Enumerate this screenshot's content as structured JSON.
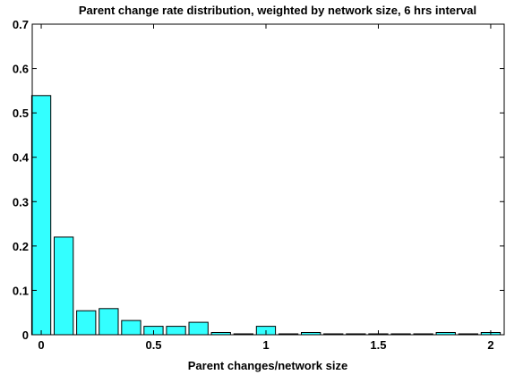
{
  "chart_data": {
    "type": "bar",
    "title": "Parent change rate distribution, weighted by network size, 6 hrs interval",
    "xlabel": "Parent changes/network size",
    "ylabel": "",
    "xlim": [
      -0.04,
      2.06
    ],
    "ylim": [
      0,
      0.7
    ],
    "bar_width": 0.085,
    "xticks": [
      0,
      0.5,
      1,
      1.5,
      2
    ],
    "xtick_labels": [
      "0",
      "0.5",
      "1",
      "1.5",
      "2"
    ],
    "yticks": [
      0,
      0.1,
      0.2,
      0.3,
      0.4,
      0.5,
      0.6,
      0.7
    ],
    "ytick_labels": [
      "0",
      "0.1",
      "0.2",
      "0.3",
      "0.4",
      "0.5",
      "0.6",
      "0.7"
    ],
    "grid": false,
    "bar_color": "#33ffff",
    "x": [
      0,
      0.1,
      0.2,
      0.3,
      0.4,
      0.5,
      0.6,
      0.7,
      0.8,
      0.9,
      1.0,
      1.1,
      1.2,
      1.3,
      1.4,
      1.5,
      1.6,
      1.7,
      1.8,
      1.9,
      2.0
    ],
    "values": [
      0.539,
      0.22,
      0.054,
      0.059,
      0.032,
      0.019,
      0.019,
      0.028,
      0.005,
      0.002,
      0.019,
      0.002,
      0.005,
      0.002,
      0.002,
      0.002,
      0.002,
      0.002,
      0.005,
      0.002,
      0.005
    ]
  }
}
